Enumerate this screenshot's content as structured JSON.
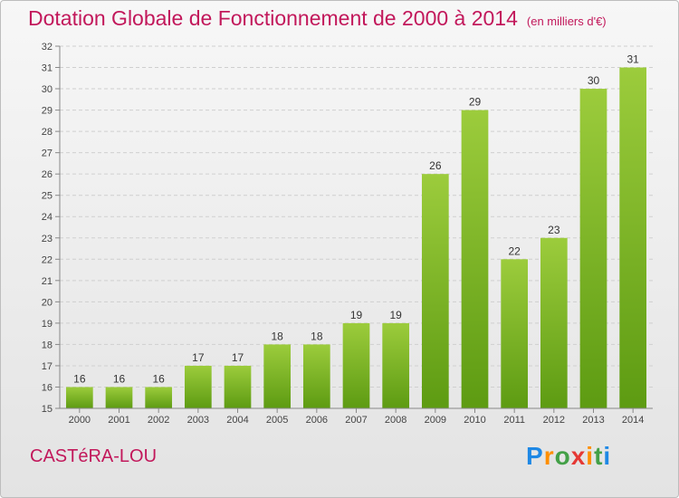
{
  "header": {
    "title": "Dotation Globale de Fonctionnement de 2000 à 2014",
    "subtitle": "(en milliers d'€)"
  },
  "footer": {
    "place": "CASTéRA-LOU",
    "brand": "Proxiti"
  },
  "colors": {
    "title": "#c2185b",
    "bar_light": "#9ccc3c",
    "bar_dark": "#5d9b12"
  },
  "chart_data": {
    "type": "bar",
    "title": "Dotation Globale de Fonctionnement de 2000 à 2014",
    "subtitle": "(en milliers d'€)",
    "categories": [
      "2000",
      "2001",
      "2002",
      "2003",
      "2004",
      "2005",
      "2006",
      "2007",
      "2008",
      "2009",
      "2010",
      "2011",
      "2012",
      "2013",
      "2014"
    ],
    "values": [
      16,
      16,
      16,
      17,
      17,
      18,
      18,
      19,
      19,
      26,
      29,
      22,
      23,
      30,
      31
    ],
    "ylim": [
      15,
      32
    ],
    "yticks": [
      15,
      16,
      17,
      18,
      19,
      20,
      21,
      22,
      23,
      24,
      25,
      26,
      27,
      28,
      29,
      30,
      31,
      32
    ],
    "grid": true,
    "data_labels": true
  }
}
